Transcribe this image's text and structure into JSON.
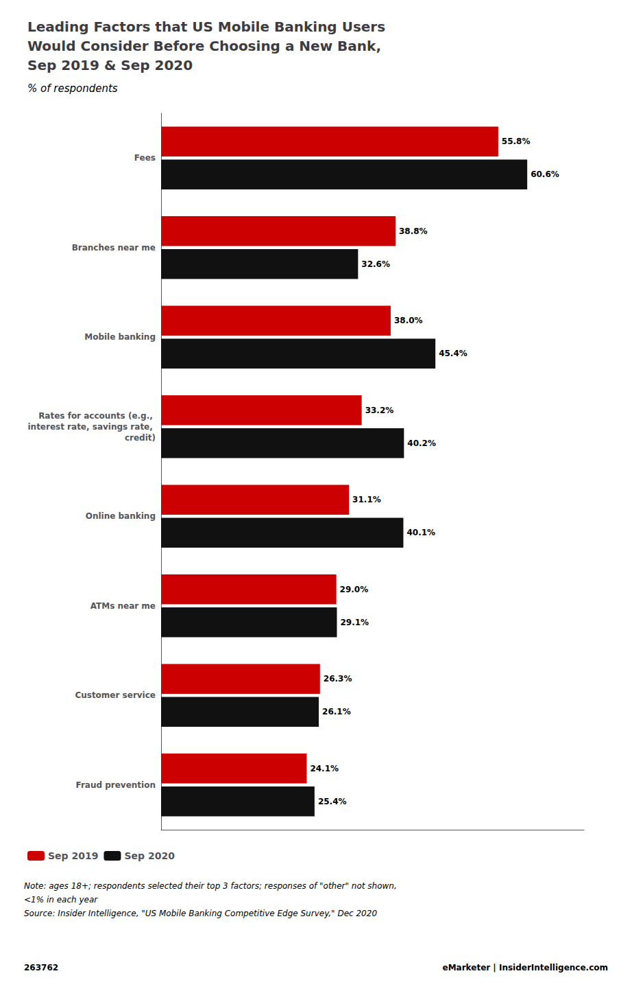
{
  "chart_data": {
    "type": "bar",
    "title": "Leading Factors that US Mobile Banking Users\nWould Consider Before Choosing a New Bank,\nSep 2019 & Sep 2020",
    "subtitle": "% of respondents",
    "categories": [
      "Fees",
      "Branches near me",
      "Mobile banking",
      "Rates for accounts (e.g., interest rate, savings rate, credit)",
      "Online banking",
      "ATMs near me",
      "Customer service",
      "Fraud prevention"
    ],
    "series": [
      {
        "name": "Sep 2019",
        "color": "#cc0000",
        "values": [
          55.8,
          38.8,
          38.0,
          33.2,
          31.1,
          29.0,
          26.3,
          24.1
        ],
        "value_labels": [
          "55.8%",
          "38.8%",
          "38.0%",
          "33.2%",
          "31.1%",
          "29.0%",
          "26.3%",
          "24.1%"
        ]
      },
      {
        "name": "Sep 2020",
        "color": "#111111",
        "values": [
          60.6,
          32.6,
          45.4,
          40.2,
          40.1,
          29.1,
          26.1,
          25.4
        ],
        "value_labels": [
          "60.6%",
          "32.6%",
          "45.4%",
          "40.2%",
          "40.1%",
          "29.1%",
          "26.1%",
          "25.4%"
        ]
      }
    ],
    "xlim": [
      0,
      70
    ],
    "orientation": "horizontal",
    "data_labels": true,
    "tick_labels": "y",
    "grid": false,
    "legend": "bottom",
    "annotations": [
      "Note: ages 18+; respondents selected their top 3 factors; responses of \"other\" not shown,",
      "<1% in each year",
      "Source: Insider Intelligence, \"US Mobile Banking Competitive Edge Survey,\" Dec 2020"
    ],
    "footer": [
      "263762",
      "eMarketer | InsiderIntelligence.com"
    ]
  }
}
